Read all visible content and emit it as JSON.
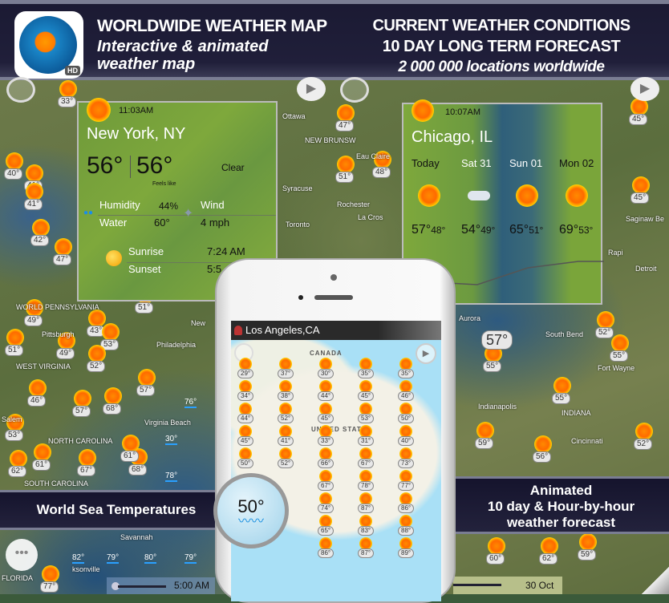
{
  "header": {
    "app_icon_badge": "HD",
    "title": "WORLDWIDE WEATHER MAP",
    "subtitle_1": "Interactive & animated",
    "subtitle_2": "weather map",
    "right_1": "CURRENT WEATHER CONDITIONS",
    "right_2": "10 DAY LONG TERM FORECAST",
    "right_3": "2 000 000  locations  worldwide"
  },
  "ny_card": {
    "time": "11:03AM",
    "city": "New York, NY",
    "temp": "56°",
    "feels": "56°",
    "feels_label": "Feels like",
    "condition": "Clear",
    "humidity_label": "Humidity",
    "humidity": "44%",
    "water_label": "Water",
    "water": "60°",
    "wind_label": "Wind",
    "wind": "4 mph",
    "sunrise_label": "Sunrise",
    "sunrise": "7:24 AM",
    "sunset_label": "Sunset",
    "sunset": "5:5"
  },
  "chicago_card": {
    "time": "10:07AM",
    "city": "Chicago, IL",
    "days": [
      {
        "label": "Today",
        "icon": "partly-sunny-icon",
        "high": "57°",
        "low": "48°"
      },
      {
        "label": "Sat 31",
        "icon": "cloudy-icon",
        "high": "54°",
        "low": "49°"
      },
      {
        "label": "Sun 01",
        "icon": "sun-icon",
        "high": "65°",
        "low": "51°"
      },
      {
        "label": "Mon 02",
        "icon": "sun-icon",
        "high": "69°",
        "low": "53°"
      }
    ]
  },
  "map_labels": {
    "left_temps": [
      "33°",
      "41°",
      "40°",
      "41°",
      "42°",
      "47°",
      "49°",
      "51°",
      "43°",
      "53°",
      "51°",
      "49°",
      "52°",
      "46°",
      "57°",
      "68°",
      "61°",
      "67°",
      "68°",
      "62°",
      "53°",
      "57°",
      "61°",
      "77°"
    ],
    "right_temps": [
      "47°",
      "45°",
      "48°",
      "51°",
      "45°",
      "52°",
      "55°",
      "55°",
      "55°",
      "56°",
      "59°",
      "52°",
      "62°",
      "60°",
      "59°"
    ],
    "big_temp": "57°",
    "sea_temps": [
      "76°",
      "30°",
      "78°",
      "79°",
      "80°",
      "79°",
      "82°"
    ],
    "places": [
      "NEW BRUNSW",
      "Ottawa",
      "Syracuse",
      "Rochester",
      "Toronto",
      "La Cros",
      "Eau Claire",
      "Saginaw Be",
      "Detroit",
      "Rapi",
      "Fort Wayne",
      "Indianapolis",
      "Aurora",
      "South Bend",
      "Cincinnati",
      "INDIANA",
      "WEST VIRGINIA",
      "NORTH CAROLINA",
      "SOUTH CAROLINA",
      "Philadelphia",
      "New",
      "Pittsburgh",
      "Virginia Beach",
      "Salem",
      "WORLD PENNSYLVANIA",
      "Savannah",
      "ksonville",
      "FLORIDA"
    ]
  },
  "time_slider_left": "5:00 AM",
  "time_slider_right": "30 Oct",
  "phone": {
    "location": "Los Angeles,CA",
    "country_label": "CANADA",
    "us_label": "UNITED STATES",
    "temps": [
      "29°",
      "37°",
      "30°",
      "35°",
      "35°",
      "34°",
      "38°",
      "44°",
      "45°",
      "46°",
      "44°",
      "52°",
      "45°",
      "53°",
      "50°",
      "45°",
      "41°",
      "33°",
      "31°",
      "40°",
      "50°",
      "52°",
      "66°",
      "67°",
      "73°",
      "67°",
      "78°",
      "77°",
      "74°",
      "87°",
      "86°",
      "65°",
      "83°",
      "88°",
      "86°",
      "87°",
      "89°"
    ]
  },
  "sea_badge": {
    "temp": "50°"
  },
  "banners": {
    "left": "World Sea Temperatures",
    "right_1": "Animated",
    "right_2": "10 day & Hour-by-hour",
    "right_3": "weather forecast"
  }
}
